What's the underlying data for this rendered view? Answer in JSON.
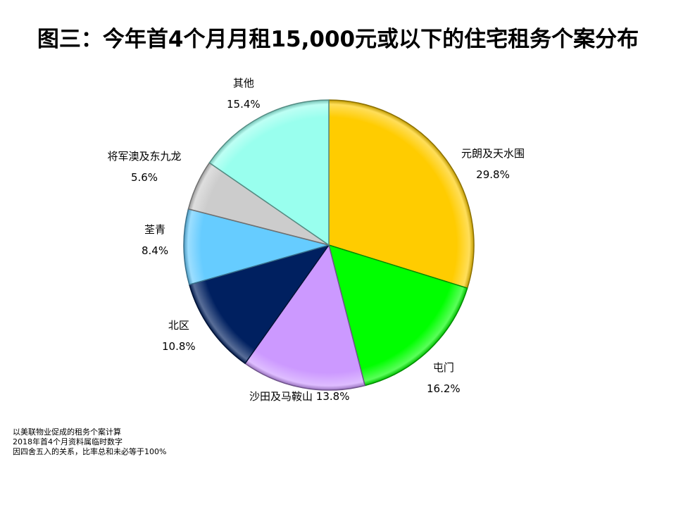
{
  "chart_data": {
    "type": "pie",
    "title": "图三：今年首4个月月租15,000元或以下的住宅租务个案分布",
    "slices": [
      {
        "name": "元朗及天水围",
        "value": 29.8,
        "label": "29.8%",
        "color": "#FFCC00"
      },
      {
        "name": "屯门",
        "value": 16.2,
        "label": "16.2%",
        "color": "#00FF00"
      },
      {
        "name": "沙田及马鞍山",
        "value": 13.8,
        "label": "13.8%",
        "color": "#CC99FF"
      },
      {
        "name": "北区",
        "value": 10.8,
        "label": "10.8%",
        "color": "#002060"
      },
      {
        "name": "荃青",
        "value": 8.4,
        "label": "8.4%",
        "color": "#66CCFF"
      },
      {
        "name": "将军澳及东九龙",
        "value": 5.6,
        "label": "5.6%",
        "color": "#CCCCCC"
      },
      {
        "name": "其他",
        "value": 15.4,
        "label": "15.4%",
        "color": "#99FFEE"
      }
    ],
    "start_angle": "12 o'clock",
    "direction": "clockwise",
    "legend": "none (labels beside slices)"
  },
  "notes": [
    "以美联物业促成的租务个案计算",
    "2018年首4个月资料属临时数字",
    "因四舍五入的关系，比率总和未必等于100%"
  ]
}
